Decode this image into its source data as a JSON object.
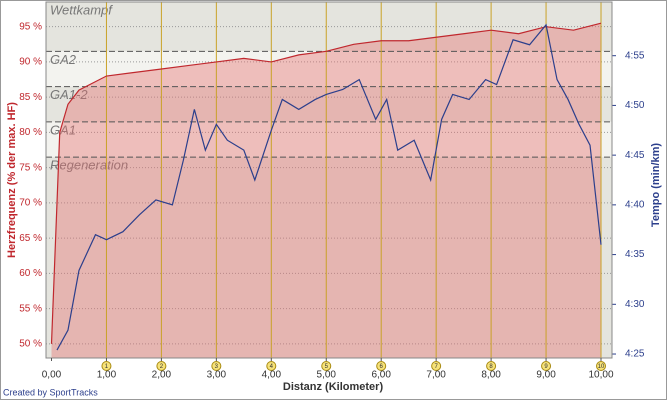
{
  "chart_data": {
    "type": "line",
    "x_label": "Distanz (Kilometer)",
    "y_label": "Herzfrequenz (% der max. HF)",
    "y2_label": "Tempo (min/km)",
    "credit": "Created by SportTracks",
    "xlim": [
      -0.1,
      10.2
    ],
    "xticks": [
      {
        "value": 0,
        "label": "0,00"
      },
      {
        "value": 1,
        "label": "1,00"
      },
      {
        "value": 2,
        "label": "2,00"
      },
      {
        "value": 3,
        "label": "3,00"
      },
      {
        "value": 4,
        "label": "4,00"
      },
      {
        "value": 5,
        "label": "5,00"
      },
      {
        "value": 6,
        "label": "6,00"
      },
      {
        "value": 7,
        "label": "7,00"
      },
      {
        "value": 8,
        "label": "8,00"
      },
      {
        "value": 9,
        "label": "9,00"
      },
      {
        "value": 10,
        "label": "10,00"
      }
    ],
    "ylim": [
      48,
      98.5
    ],
    "yticks": [
      {
        "value": 50,
        "label": "50 %"
      },
      {
        "value": 55,
        "label": "55 %"
      },
      {
        "value": 60,
        "label": "60 %"
      },
      {
        "value": 65,
        "label": "65 %"
      },
      {
        "value": 70,
        "label": "70 %"
      },
      {
        "value": 75,
        "label": "75 %"
      },
      {
        "value": 80,
        "label": "80 %"
      },
      {
        "value": 85,
        "label": "85 %"
      },
      {
        "value": 90,
        "label": "90 %"
      },
      {
        "value": 95,
        "label": "95 %"
      }
    ],
    "y2lim": [
      264.6,
      300.4
    ],
    "y2ticks": [
      {
        "value": 265,
        "label": "4:25"
      },
      {
        "value": 270,
        "label": "4:30"
      },
      {
        "value": 275,
        "label": "4:35"
      },
      {
        "value": 280,
        "label": "4:40"
      },
      {
        "value": 285,
        "label": "4:45"
      },
      {
        "value": 290,
        "label": "4:50"
      },
      {
        "value": 295,
        "label": "4:55"
      }
    ],
    "zones": [
      {
        "name": "Wettkampf",
        "from": 91.5
      },
      {
        "name": "GA2",
        "from": 86.5
      },
      {
        "name": "GA1-2",
        "from": 81.5
      },
      {
        "name": "GA1",
        "from": 76.5
      },
      {
        "name": "Regeneration"
      }
    ],
    "laps": [
      1,
      2,
      3,
      4,
      5,
      6,
      7,
      8,
      9,
      10
    ],
    "series": [
      {
        "name": "Herzfrequenz",
        "color": "#c0282e",
        "x": [
          0,
          0.05,
          0.15,
          0.3,
          0.5,
          1.0,
          1.5,
          2.0,
          2.5,
          3.0,
          3.5,
          4.0,
          4.5,
          5.0,
          5.5,
          6.0,
          6.5,
          7.0,
          7.5,
          8.0,
          8.5,
          9.0,
          9.5,
          10.0
        ],
        "values": [
          50,
          60,
          80,
          84,
          86,
          88,
          88.5,
          89,
          89.5,
          90,
          90.5,
          90,
          91,
          91.5,
          92.5,
          93,
          93,
          93.5,
          94,
          94.5,
          94,
          95,
          94.5,
          95.5
        ]
      },
      {
        "name": "Tempo",
        "color": "#2c3f8c",
        "axis": "y2",
        "x": [
          0.1,
          0.3,
          0.5,
          0.8,
          1.0,
          1.3,
          1.6,
          1.9,
          2.2,
          2.4,
          2.6,
          2.8,
          3.0,
          3.2,
          3.5,
          3.7,
          4.0,
          4.2,
          4.5,
          4.8,
          5.0,
          5.3,
          5.6,
          5.9,
          6.1,
          6.3,
          6.6,
          6.9,
          7.1,
          7.3,
          7.6,
          7.9,
          8.1,
          8.4,
          8.7,
          9.0,
          9.2,
          9.4,
          9.6,
          9.8,
          10.0
        ],
        "values": [
          265.4,
          267.4,
          273.4,
          277.0,
          276.5,
          277.3,
          279.0,
          280.5,
          280.0,
          284.5,
          289.6,
          285.5,
          288.1,
          286.5,
          285.5,
          282.5,
          287.5,
          290.6,
          289.6,
          290.6,
          291.1,
          291.6,
          292.6,
          288.6,
          290.6,
          285.5,
          286.5,
          282.5,
          288.6,
          291.1,
          290.6,
          292.6,
          292.1,
          296.6,
          296.1,
          298.1,
          292.6,
          290.6,
          288.1,
          286.0,
          276.0
        ]
      }
    ]
  }
}
